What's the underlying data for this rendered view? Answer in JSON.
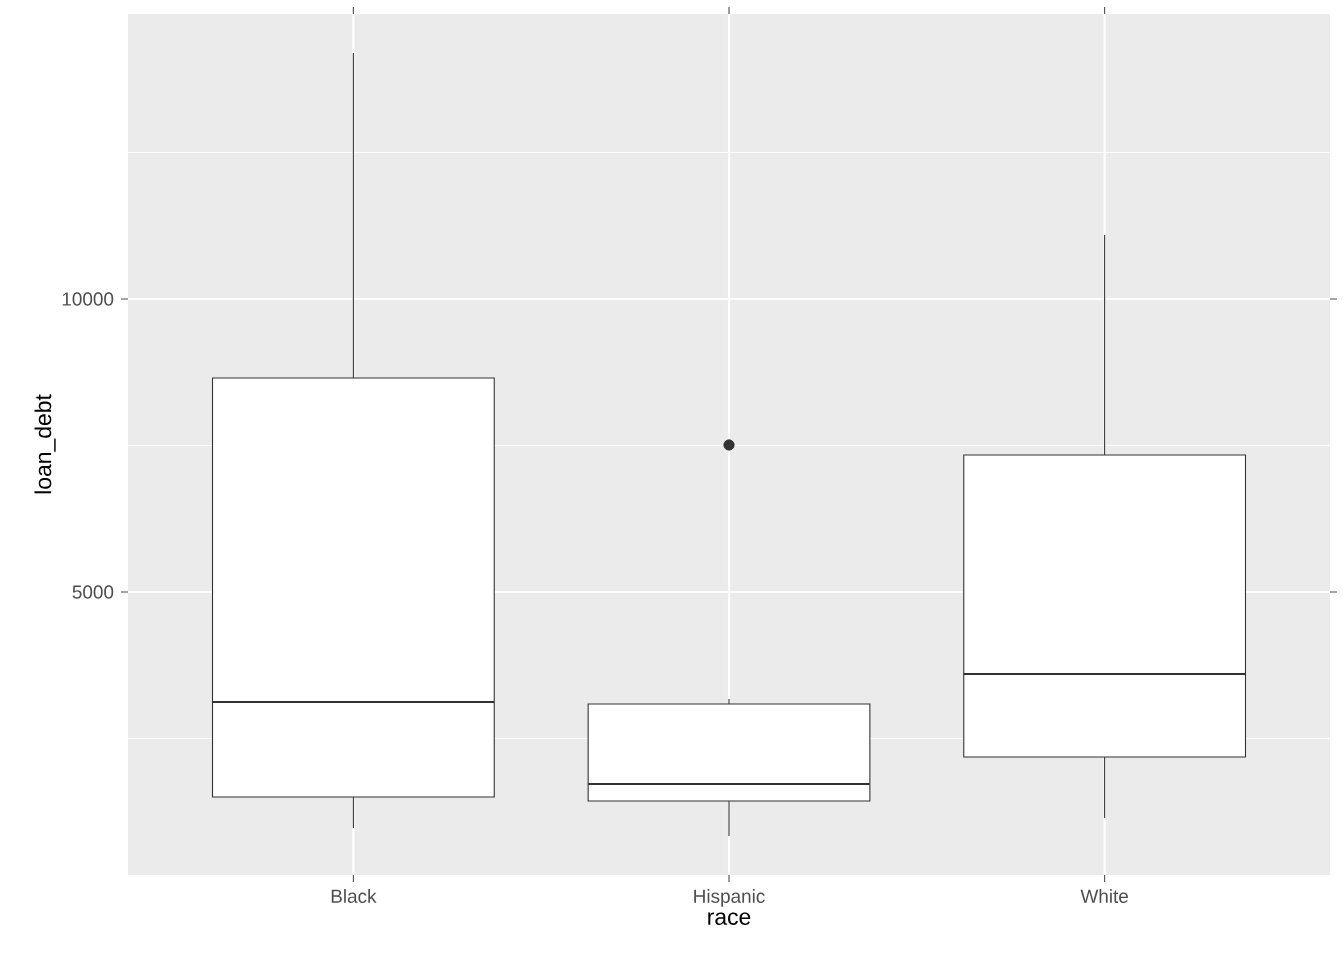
{
  "chart_data": {
    "type": "box",
    "xlabel": "race",
    "ylabel": "loan_debt",
    "categories": [
      "Black",
      "Hispanic",
      "White"
    ],
    "boxes": [
      {
        "low": 973,
        "q1": 1502,
        "median": 3123,
        "q3": 8652,
        "high": 14198
      },
      {
        "low": 836,
        "q1": 1433,
        "median": 1724,
        "q3": 3089,
        "high": 3174,
        "outliers": [
          7509
        ]
      },
      {
        "low": 1143,
        "q1": 2184,
        "median": 3601,
        "q3": 7338,
        "high": 11092
      }
    ],
    "color": "#333333",
    "ylim": [
      171,
      14864
    ],
    "yticks": [
      5000,
      10000
    ],
    "grid": true
  }
}
